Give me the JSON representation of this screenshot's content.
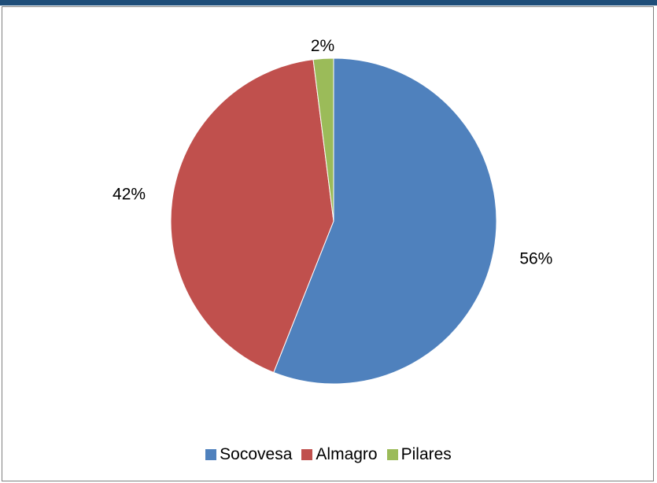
{
  "chart_data": {
    "type": "pie",
    "categories": [
      "Socovesa",
      "Almagro",
      "Pilares"
    ],
    "values": [
      56,
      42,
      2
    ],
    "labels": [
      "56%",
      "42%",
      "2%"
    ],
    "colors": [
      "#4f81bd",
      "#c0504d",
      "#9bbb59"
    ],
    "title": "",
    "legend_position": "bottom"
  }
}
